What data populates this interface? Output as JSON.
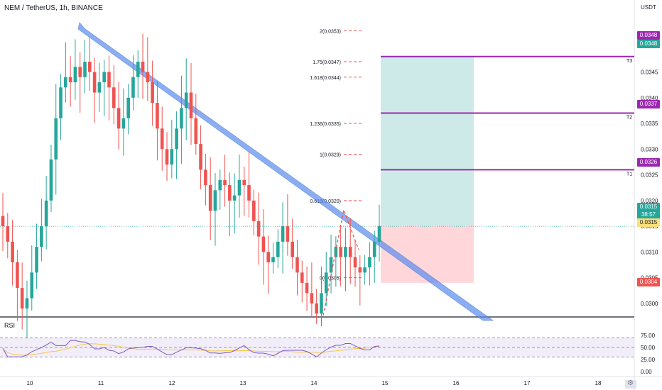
{
  "header": {
    "title": "NEM / TetherUS, 1h, BINANCE",
    "unit": "USDT"
  },
  "rsi": {
    "label": "RSI",
    "ticks": [
      "75.00",
      "50.00",
      "25.00",
      "0.00"
    ]
  },
  "price_axis": {
    "ticks": [
      "0.0345",
      "0.0340",
      "0.0335",
      "0.0330",
      "0.0325",
      "0.0320",
      "0.0315",
      "0.0310",
      "0.0305",
      "0.0300"
    ]
  },
  "tags": {
    "t3": "0.0348",
    "t3b": "0.0348",
    "t2": "0.0337",
    "t1": "0.0326",
    "last_price": "0.0315",
    "countdown": "38:57",
    "entry": "0.0315",
    "stop": "0.0304"
  },
  "targets": [
    "T3",
    "T2",
    "T1"
  ],
  "fib": [
    {
      "label": "2(0.0353)",
      "value": 0.0353
    },
    {
      "label": "1.75(0.0347)",
      "value": 0.0347
    },
    {
      "label": "1.618(0.0344)",
      "value": 0.0344
    },
    {
      "label": "1.236(0.0335)",
      "value": 0.0335
    },
    {
      "label": "1(0.0329)",
      "value": 0.0329
    },
    {
      "label": "0.618(0.0320)",
      "value": 0.032
    },
    {
      "label": "0(0.0305)",
      "value": 0.0305
    }
  ],
  "x_axis": {
    "ticks": [
      "10",
      "11",
      "12",
      "13",
      "14",
      "15",
      "16",
      "17",
      "18"
    ]
  },
  "colors": {
    "up": "#26a69a",
    "down": "#ef5350",
    "target": "#9c27b0",
    "channel": "#5b8def",
    "profit": "#b2dfdb",
    "loss": "#ffcdd2",
    "rsi": "#7e57c2",
    "rsi_ma": "#f9c846"
  },
  "chart_data": {
    "type": "candlestick",
    "title": "NEM / TetherUS, 1h, BINANCE",
    "ylim": [
      0.02975,
      0.0359
    ],
    "y_ticks": [
      0.03,
      0.0305,
      0.031,
      0.0315,
      0.032,
      0.0325,
      0.033,
      0.0335,
      0.034,
      0.0345
    ],
    "x_ticks": [
      "10",
      "11",
      "12",
      "13",
      "14",
      "15",
      "16",
      "17",
      "18"
    ],
    "close_series": [
      0.0315,
      0.0312,
      0.0308,
      0.0303,
      0.0299,
      0.0301,
      0.0306,
      0.0311,
      0.0315,
      0.032,
      0.0328,
      0.0336,
      0.0342,
      0.0344,
      0.0343,
      0.0346,
      0.0344,
      0.0347,
      0.0345,
      0.0341,
      0.0343,
      0.0345,
      0.0342,
      0.0338,
      0.0334,
      0.0336,
      0.034,
      0.0344,
      0.0347,
      0.0345,
      0.0343,
      0.0339,
      0.0334,
      0.033,
      0.0327,
      0.033,
      0.0334,
      0.0338,
      0.0341,
      0.0336,
      0.0331,
      0.0326,
      0.0323,
      0.0318,
      0.0322,
      0.0324,
      0.0323,
      0.032,
      0.0321,
      0.0324,
      0.0323,
      0.032,
      0.0316,
      0.0313,
      0.031,
      0.0308,
      0.0309,
      0.0312,
      0.0315,
      0.0312,
      0.0309,
      0.0306,
      0.0304,
      0.0302,
      0.03,
      0.0298,
      0.0302,
      0.0306,
      0.0309,
      0.0311,
      0.0309,
      0.0311,
      0.0309,
      0.0307,
      0.0306,
      0.0307,
      0.0309,
      0.0312,
      0.0315
    ],
    "levels": {
      "T3": 0.0348,
      "T2": 0.0337,
      "T1": 0.0326,
      "entry": 0.0315,
      "stop": 0.0304
    },
    "fibonacci": [
      {
        "ratio": "2",
        "price": 0.0353
      },
      {
        "ratio": "1.75",
        "price": 0.0347
      },
      {
        "ratio": "1.618",
        "price": 0.0344
      },
      {
        "ratio": "1.236",
        "price": 0.0335
      },
      {
        "ratio": "1",
        "price": 0.0329
      },
      {
        "ratio": "0.618",
        "price": 0.032
      },
      {
        "ratio": "0",
        "price": 0.0305
      }
    ],
    "rsi": {
      "ylim": [
        0,
        100
      ],
      "ticks": [
        75,
        50,
        25,
        0
      ],
      "bands": [
        70,
        30
      ]
    }
  }
}
